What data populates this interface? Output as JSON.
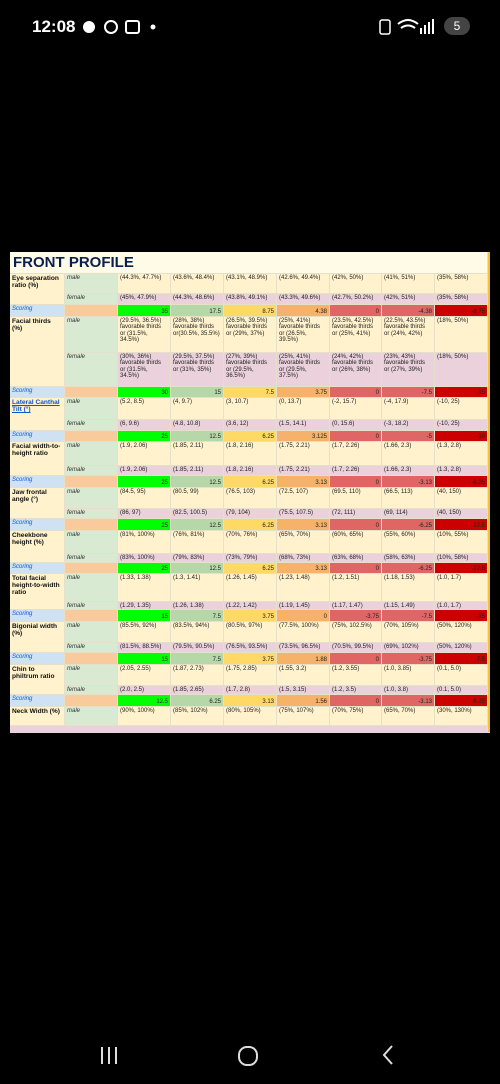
{
  "status_bar": {
    "time": "12:08",
    "battery": "5"
  },
  "sheet": {
    "title": "FRONT PROFILE",
    "sections": [
      {
        "label": "Eye separation ratio (%)",
        "rows": [
          {
            "name": "male",
            "cells": [
              "(44.3%, 47.7%)",
              "(43.6%, 48.4%)",
              "(43.1%, 48.9%)",
              "(42.6%, 49.4%)",
              "(42%, 50%)",
              "(41%, 51%)",
              "(35%, 58%)"
            ]
          },
          {
            "name": "female",
            "cells": [
              "(45%, 47.9%)",
              "(44.3%, 48.6%)",
              "(43.8%, 49.1%)",
              "(43.3%, 49.6%)",
              "(42.7%, 50.2%)",
              "(42%, 51%)",
              "(35%, 58%)"
            ]
          },
          {
            "name": "Scoring",
            "cells": [
              35,
              17.5,
              8.75,
              4.38,
              0,
              -4.38,
              -8.75
            ]
          }
        ]
      },
      {
        "label": "Facial thirds (%)",
        "rows": [
          {
            "name": "male",
            "cells": [
              "(29.5%, 36.5%) favorable thirds or (31.5%, 34.5%)",
              "(28%, 38%) favorable thirds or(30.5%, 35.5%)",
              "(26.5%, 39.5%) favorable thirds or (29%, 37%)",
              "(25%, 41%) favorable thirds or (26.5%, 39.5%)",
              "(23.5%, 42.5%) favorable thirds or (25%, 41%)",
              "(22.5%, 43.5%) favorable thirds or (24%, 42%)",
              "(18%, 50%)"
            ]
          },
          {
            "name": "female",
            "cells": [
              "(30%, 36%) favorable thirds or (31.5%, 34.5%)",
              "(29.5%, 37.5%) favorable thirds or (31%, 35%)",
              "(27%, 39%) favorable thirds or (29.5%, 36.5%)",
              "(25%, 41%) favorable thirds or (29.5%, 37.5%)",
              "(24%, 42%) favorable thirds or (26%, 38%)",
              "(23%, 43%) favorable thirds or (27%, 39%)",
              "(18%, 50%)"
            ]
          },
          {
            "name": "Scoring",
            "cells": [
              30,
              15,
              7.5,
              3.75,
              0,
              -7.5,
              -15
            ]
          }
        ]
      },
      {
        "label": "Lateral Canthal Tilt (°)",
        "link": true,
        "rows": [
          {
            "name": "male",
            "cells": [
              "(5.2, 8.5)",
              "(4, 9.7)",
              "(3, 10.7)",
              "(0, 13.7)",
              "(-2, 15.7)",
              "(-4, 17.9)",
              "(-10, 25)"
            ]
          },
          {
            "name": "female",
            "cells": [
              "(6, 9.6)",
              "(4.8, 10.8)",
              "(3.6, 12)",
              "(1.5, 14.1)",
              "(0, 15.6)",
              "(-3, 18.2)",
              "(-10, 25)"
            ]
          },
          {
            "name": "Scoring",
            "cells": [
              25,
              12.5,
              6.25,
              3.125,
              0,
              -5,
              -10
            ]
          }
        ]
      },
      {
        "label": "Facial width-to-height ratio",
        "rows": [
          {
            "name": "male",
            "cells": [
              "(1.9, 2.06)",
              "(1.85, 2.11)",
              "(1.8, 2.16)",
              "(1.75, 2.21)",
              "(1.7, 2.26)",
              "(1.66, 2.3)",
              "(1.3, 2.8)"
            ]
          },
          {
            "name": "female",
            "cells": [
              "(1.9, 2.06)",
              "(1.85, 2.11)",
              "(1.8, 2.16)",
              "(1.75, 2.21)",
              "(1.7, 2.26)",
              "(1.66, 2.3)",
              "(1.3, 2.8)"
            ]
          },
          {
            "name": "Scoring",
            "cells": [
              25,
              12.5,
              6.25,
              3.13,
              0,
              -3.13,
              -6.25
            ]
          }
        ]
      },
      {
        "label": "Jaw frontal angle (°)",
        "rows": [
          {
            "name": "male",
            "cells": [
              "(84.5, 95)",
              "(80.5, 99)",
              "(76.5, 103)",
              "(72.5, 107)",
              "(69.5, 110)",
              "(66.5, 113)",
              "(40, 150)"
            ]
          },
          {
            "name": "female",
            "cells": [
              "(86, 97)",
              "(82.5, 100.5)",
              "(79, 104)",
              "(75.5, 107.5)",
              "(72, 111)",
              "(69, 114)",
              "(40, 150)"
            ]
          },
          {
            "name": "Scoring",
            "cells": [
              25,
              12.5,
              6.25,
              3.13,
              0,
              -6.25,
              -12.5
            ]
          }
        ]
      },
      {
        "label": "Cheekbone height (%)",
        "rows": [
          {
            "name": "male",
            "cells": [
              "(81%, 100%)",
              "(76%, 81%)",
              "(70%, 76%)",
              "(65%, 70%)",
              "(60%, 65%)",
              "(55%, 60%)",
              "(10%, 55%)"
            ]
          },
          {
            "name": "female",
            "cells": [
              "(83%, 100%)",
              "(79%, 83%)",
              "(73%, 79%)",
              "(68%, 73%)",
              "(63%, 68%)",
              "(58%, 63%)",
              "(10%, 58%)"
            ]
          },
          {
            "name": "Scoring",
            "cells": [
              25,
              12.5,
              6.25,
              3.13,
              0,
              -6.25,
              -12.5
            ]
          }
        ]
      },
      {
        "label": "Total facial height-to-width ratio",
        "rows": [
          {
            "name": "male",
            "cells": [
              "(1.33, 1.38)",
              "(1.3, 1.41)",
              "(1.26, 1.45)",
              "(1.23, 1.48)",
              "(1.2, 1.51)",
              "(1.18, 1.53)",
              "(1.0, 1.7)"
            ]
          },
          {
            "name": "female",
            "cells": [
              "(1.29, 1.35)",
              "(1.26, 1.38)",
              "(1.22, 1.42)",
              "(1.19, 1.45)",
              "(1.17, 1.47)",
              "(1.15, 1.49)",
              "(1.0, 1.7)"
            ]
          },
          {
            "name": "Scoring",
            "cells": [
              15,
              7.5,
              3.75,
              0,
              -3.75,
              -7.5,
              -15
            ]
          }
        ]
      },
      {
        "label": "Bigonial width (%)",
        "rows": [
          {
            "name": "male",
            "cells": [
              "(85.5%, 92%)",
              "(83.5%, 94%)",
              "(80.5%, 97%)",
              "(77.5%, 100%)",
              "(75%, 102.5%)",
              "(70%, 105%)",
              "(50%, 120%)"
            ]
          },
          {
            "name": "female",
            "cells": [
              "(81.5%, 88.5%)",
              "(79.5%, 90.5%)",
              "(76.5%, 93.5%)",
              "(73.5%, 96.5%)",
              "(70.5%, 99.5%)",
              "(69%, 102%)",
              "(50%, 120%)"
            ]
          },
          {
            "name": "Scoring",
            "cells": [
              15,
              7.5,
              3.75,
              1.88,
              0,
              -3.75,
              -7.5
            ]
          }
        ]
      },
      {
        "label": "Chin to philtrum ratio",
        "rows": [
          {
            "name": "male",
            "cells": [
              "(2.05, 2.55)",
              "(1.87, 2.73)",
              "(1.75, 2.85)",
              "(1.55, 3.2)",
              "(1.2, 3.55)",
              "(1.0, 3.85)",
              "(0.1, 5.0)"
            ]
          },
          {
            "name": "female",
            "cells": [
              "(2.0, 2.5)",
              "(1.85, 2.65)",
              "(1.7, 2.8)",
              "(1.5, 3.15)",
              "(1.2, 3.5)",
              "(1.0, 3.8)",
              "(0.1, 5.0)"
            ]
          },
          {
            "name": "Scoring",
            "cells": [
              12.5,
              6.25,
              3.13,
              1.56,
              0,
              -3.13,
              -6.25
            ]
          }
        ]
      },
      {
        "label": "Neck Width (%)",
        "rows": [
          {
            "name": "male",
            "cells": [
              "(90%, 100%)",
              "(85%, 102%)",
              "(80%, 105%)",
              "(75%, 107%)",
              "(70%, 75%)",
              "(65%, 70%)",
              "(30%, 130%)"
            ]
          }
        ]
      }
    ]
  }
}
